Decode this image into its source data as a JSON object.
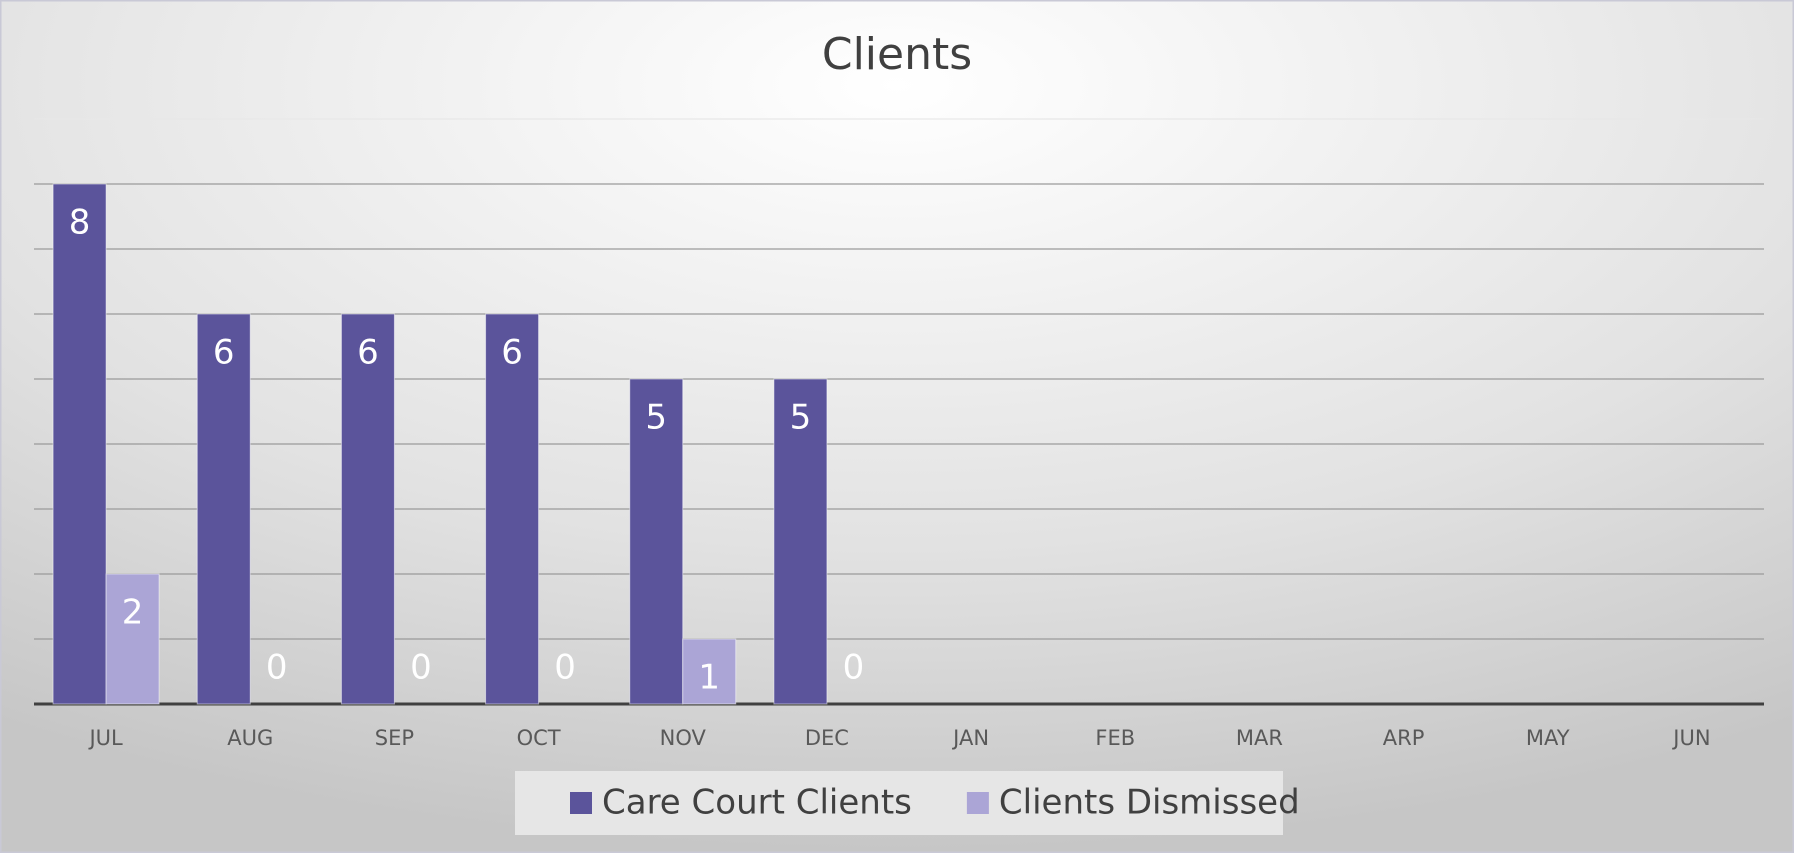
{
  "chart_data": {
    "type": "bar",
    "title": "Clients",
    "categories": [
      "JUL",
      "AUG",
      "SEP",
      "OCT",
      "NOV",
      "DEC",
      "JAN",
      "FEB",
      "MAR",
      "ARP",
      "MAY",
      "JUN"
    ],
    "series": [
      {
        "name": "Care Court Clients",
        "color": "#5b549b",
        "values": [
          8,
          6,
          6,
          6,
          5,
          5,
          null,
          null,
          null,
          null,
          null,
          null
        ]
      },
      {
        "name": "Clients Dismissed",
        "color": "#aba5d6",
        "values": [
          2,
          0,
          0,
          0,
          1,
          0,
          null,
          null,
          null,
          null,
          null,
          null
        ]
      }
    ],
    "ylim": [
      0,
      9
    ],
    "yticks": [
      0,
      1,
      2,
      3,
      4,
      5,
      6,
      7,
      8,
      9
    ],
    "grid": true,
    "legend": "bottom"
  }
}
